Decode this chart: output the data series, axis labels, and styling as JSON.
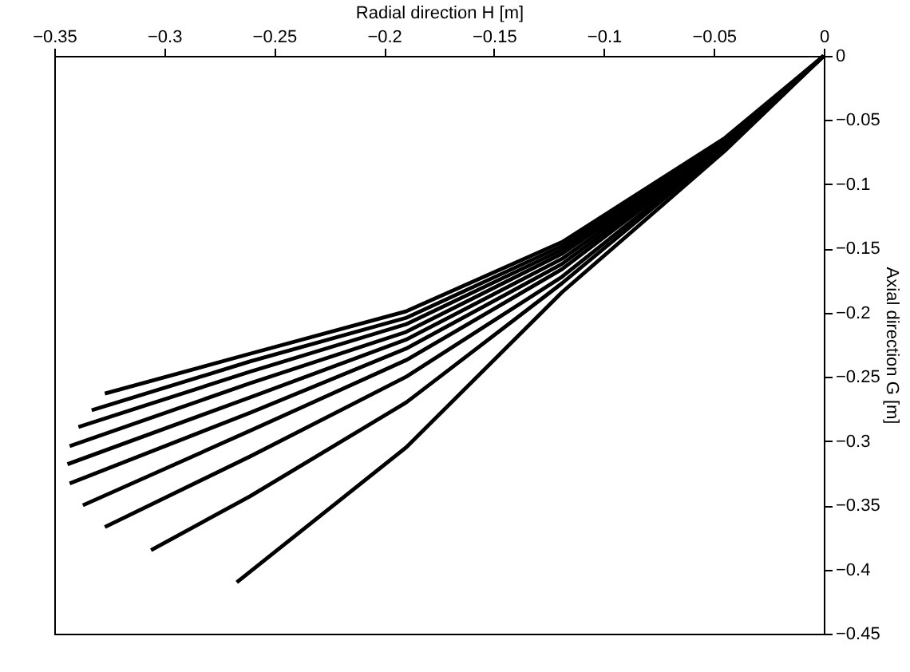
{
  "chart_data": {
    "type": "line",
    "xlabel": "Radial direction H [m]",
    "ylabel": "Axial direction G [m]",
    "xlim": [
      -0.35,
      0
    ],
    "ylim": [
      -0.45,
      0
    ],
    "xticks": [
      -0.35,
      -0.3,
      -0.25,
      -0.2,
      -0.15,
      -0.1,
      -0.05,
      0
    ],
    "yticks": [
      0,
      -0.05,
      -0.1,
      -0.15,
      -0.2,
      -0.25,
      -0.3,
      -0.35,
      -0.4,
      -0.45
    ],
    "grid": false,
    "marker": "none",
    "line_style": "solid",
    "series": [
      {
        "color": "#000000",
        "x": [
          -0.327,
          -0.261,
          -0.19,
          -0.119,
          -0.045,
          0
        ],
        "values": [
          -0.263,
          -0.232,
          -0.199,
          -0.145,
          -0.064,
          0
        ]
      },
      {
        "color": "#000000",
        "x": [
          -0.333,
          -0.261,
          -0.19,
          -0.119,
          -0.045,
          0
        ],
        "values": [
          -0.276,
          -0.238,
          -0.204,
          -0.148,
          -0.065,
          0
        ]
      },
      {
        "color": "#000000",
        "x": [
          -0.339,
          -0.261,
          -0.19,
          -0.119,
          -0.045,
          0
        ],
        "values": [
          -0.289,
          -0.246,
          -0.209,
          -0.151,
          -0.066,
          0
        ]
      },
      {
        "color": "#000000",
        "x": [
          -0.343,
          -0.261,
          -0.19,
          -0.119,
          -0.045,
          0
        ],
        "values": [
          -0.304,
          -0.255,
          -0.215,
          -0.154,
          -0.067,
          0
        ]
      },
      {
        "color": "#000000",
        "x": [
          -0.344,
          -0.261,
          -0.19,
          -0.119,
          -0.045,
          0
        ],
        "values": [
          -0.318,
          -0.266,
          -0.221,
          -0.158,
          -0.068,
          0
        ]
      },
      {
        "color": "#000000",
        "x": [
          -0.343,
          -0.261,
          -0.19,
          -0.119,
          -0.045,
          0
        ],
        "values": [
          -0.333,
          -0.278,
          -0.228,
          -0.162,
          -0.069,
          0
        ]
      },
      {
        "color": "#000000",
        "x": [
          -0.337,
          -0.261,
          -0.19,
          -0.119,
          -0.045,
          0
        ],
        "values": [
          -0.35,
          -0.292,
          -0.237,
          -0.166,
          -0.07,
          0
        ]
      },
      {
        "color": "#000000",
        "x": [
          -0.327,
          -0.261,
          -0.19,
          -0.119,
          -0.045,
          0
        ],
        "values": [
          -0.367,
          -0.312,
          -0.25,
          -0.172,
          -0.071,
          0
        ]
      },
      {
        "color": "#000000",
        "x": [
          -0.306,
          -0.261,
          -0.19,
          -0.119,
          -0.045,
          0
        ],
        "values": [
          -0.385,
          -0.343,
          -0.27,
          -0.177,
          -0.072,
          0
        ]
      },
      {
        "color": "#000000",
        "x": [
          -0.267,
          -0.19,
          -0.119,
          -0.045,
          0
        ],
        "values": [
          -0.41,
          -0.305,
          -0.184,
          -0.074,
          0
        ]
      }
    ]
  }
}
